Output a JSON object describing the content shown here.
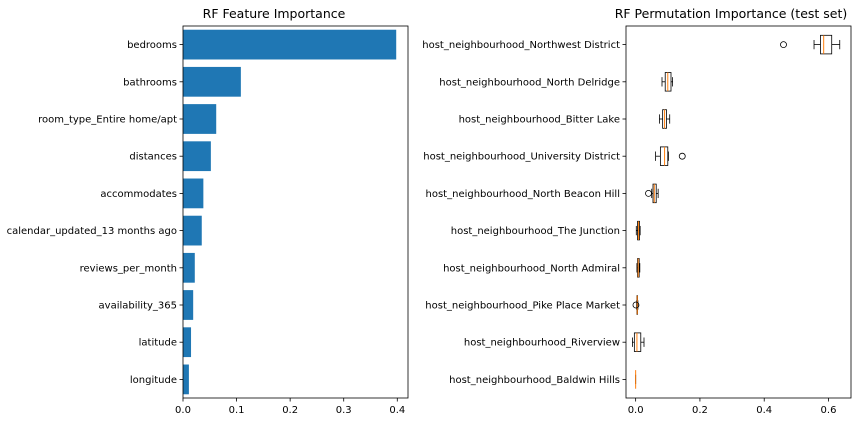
{
  "chart_data": [
    {
      "type": "bar",
      "orientation": "horizontal",
      "title": "RF Feature Importance",
      "categories": [
        "bedrooms",
        "bathrooms",
        "room_type_Entire home/apt",
        "distances",
        "accommodates",
        "calendar_updated_13 months ago",
        "reviews_per_month",
        "availability_365",
        "latitude",
        "longitude"
      ],
      "values": [
        0.398,
        0.108,
        0.062,
        0.052,
        0.038,
        0.035,
        0.022,
        0.019,
        0.015,
        0.011
      ],
      "xlim": [
        0,
        0.42
      ],
      "xticks": [
        "0.0",
        "0.1",
        "0.2",
        "0.3",
        "0.4"
      ],
      "xtick_values": [
        0,
        0.1,
        0.2,
        0.3,
        0.4
      ],
      "bar_color": "#1f77b4",
      "grid": false
    },
    {
      "type": "boxplot",
      "orientation": "horizontal",
      "title": "RF Permutation Importance (test set)",
      "categories": [
        "host_neighbourhood_Northwest District",
        "host_neighbourhood_North Delridge",
        "host_neighbourhood_Bitter Lake",
        "host_neighbourhood_University District",
        "host_neighbourhood_North Beacon Hill",
        "host_neighbourhood_The Junction",
        "host_neighbourhood_North Admiral",
        "host_neighbourhood_Pike Place Market",
        "host_neighbourhood_Riverview",
        "host_neighbourhood_Baldwin Hills"
      ],
      "boxes": [
        {
          "whislo": 0.555,
          "q1": 0.575,
          "med": 0.585,
          "q3": 0.61,
          "whishi": 0.635,
          "fliers": [
            0.46
          ]
        },
        {
          "whislo": 0.082,
          "q1": 0.092,
          "med": 0.1,
          "q3": 0.11,
          "whishi": 0.115,
          "fliers": []
        },
        {
          "whislo": 0.074,
          "q1": 0.084,
          "med": 0.09,
          "q3": 0.096,
          "whishi": 0.106,
          "fliers": []
        },
        {
          "whislo": 0.062,
          "q1": 0.077,
          "med": 0.09,
          "q3": 0.1,
          "whishi": 0.102,
          "fliers": [
            0.145
          ]
        },
        {
          "whislo": 0.05,
          "q1": 0.054,
          "med": 0.058,
          "q3": 0.064,
          "whishi": 0.07,
          "fliers": [
            0.04
          ]
        },
        {
          "whislo": 0.002,
          "q1": 0.006,
          "med": 0.009,
          "q3": 0.012,
          "whishi": 0.014,
          "fliers": []
        },
        {
          "whislo": 0.004,
          "q1": 0.006,
          "med": 0.008,
          "q3": 0.011,
          "whishi": 0.013,
          "fliers": []
        },
        {
          "whislo": 0.003,
          "q1": 0.004,
          "med": 0.005,
          "q3": 0.006,
          "whishi": 0.007,
          "fliers": [
            0.001
          ]
        },
        {
          "whislo": -0.01,
          "q1": -0.004,
          "med": 0.004,
          "q3": 0.016,
          "whishi": 0.026,
          "fliers": []
        },
        {
          "whislo": 0.0,
          "q1": 0.0,
          "med": 0.0,
          "q3": 0.0,
          "whishi": 0.0,
          "fliers": []
        }
      ],
      "xlim": [
        -0.03,
        0.67
      ],
      "xticks": [
        "0.0",
        "0.2",
        "0.4",
        "0.6"
      ],
      "xtick_values": [
        0,
        0.2,
        0.4,
        0.6
      ],
      "median_color": "#ff7f0e",
      "grid": false
    }
  ]
}
